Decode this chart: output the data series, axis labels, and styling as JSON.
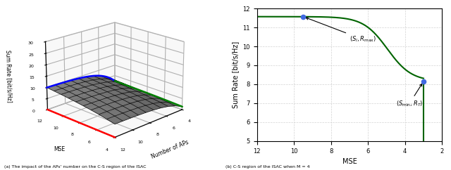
{
  "fig_width": 6.4,
  "fig_height": 2.42,
  "dpi": 100,
  "subplot_a": {
    "xlabel": "Number of APs",
    "ylabel": "MSE",
    "zlabel": "Sum Rate [bit/s/Hz]",
    "caption": "(a) The impact of the APs' number on the C-S region of the ISAC",
    "zlim": [
      0,
      30
    ],
    "zticks": [
      0,
      5,
      10,
      15,
      20,
      25,
      30
    ],
    "mse_ticks": [
      4,
      6,
      8,
      10,
      12
    ],
    "ap_ticks": [
      4,
      6,
      8,
      10,
      12
    ],
    "view_elev": 20,
    "view_azim": -135,
    "blue_color": "#0000FF",
    "green_color": "#008000",
    "red_color": "#FF0000"
  },
  "subplot_b": {
    "xlabel": "MSE",
    "ylabel": "Sum Rate [bit/s/Hz]",
    "caption": "(b) C-S region of the ISAC when M = 4",
    "xlim": [
      12,
      2
    ],
    "ylim": [
      5,
      12
    ],
    "yticks": [
      5,
      6,
      7,
      8,
      9,
      10,
      11,
      12
    ],
    "xticks": [
      12,
      10,
      8,
      6,
      4,
      2
    ],
    "point1_x": 9.5,
    "point1_y": 11.57,
    "point2_x": 3.0,
    "point2_y": 8.15,
    "curve_color": "#006400",
    "point_color": "#4169E1"
  }
}
